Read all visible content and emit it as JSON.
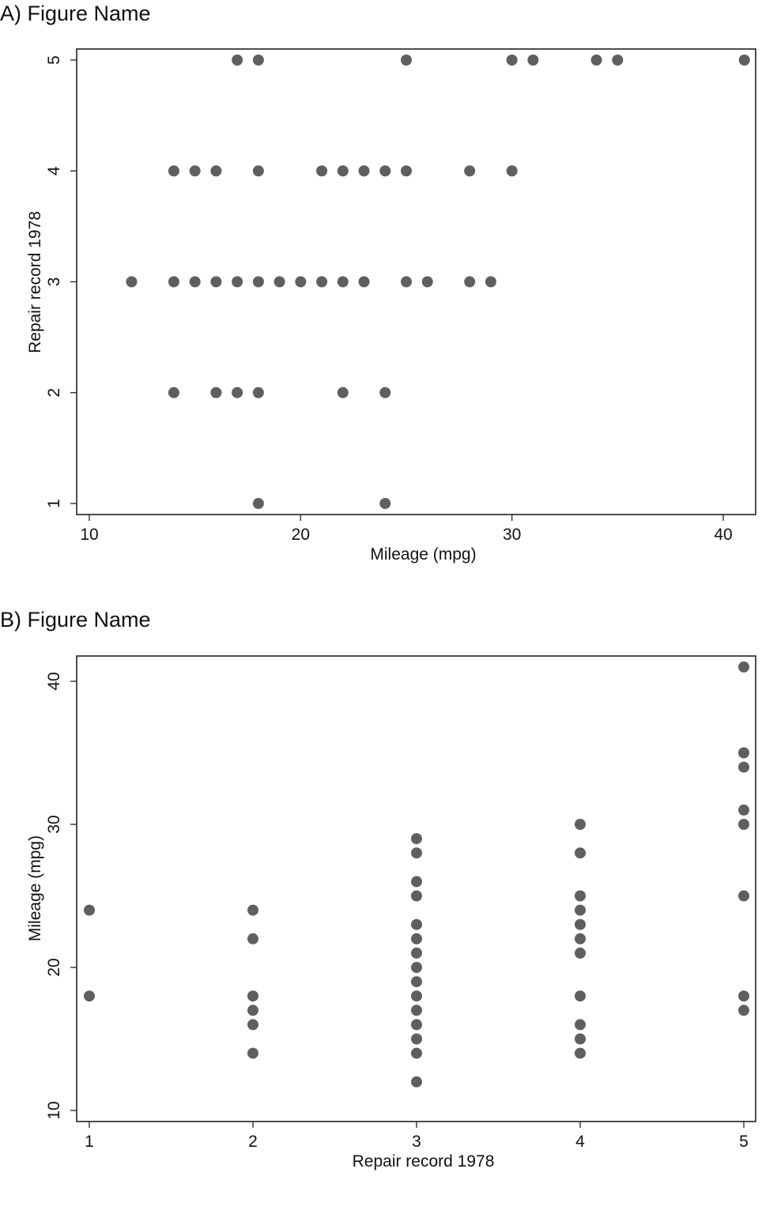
{
  "chart_data": [
    {
      "type": "scatter",
      "title": "A) Figure Name",
      "xlabel": "Mileage (mpg)",
      "ylabel": "Repair record 1978",
      "xlim": [
        9.4,
        41.6
      ],
      "ylim": [
        0.9,
        5.1
      ],
      "xticks": [
        10,
        20,
        30,
        40
      ],
      "yticks": [
        1,
        2,
        3,
        4,
        5
      ],
      "grid": false,
      "legend": null,
      "marker_color": "#5f5f5f",
      "points": [
        {
          "x": 17,
          "y": 5
        },
        {
          "x": 18,
          "y": 5
        },
        {
          "x": 25,
          "y": 5
        },
        {
          "x": 30,
          "y": 5
        },
        {
          "x": 31,
          "y": 5
        },
        {
          "x": 34,
          "y": 5
        },
        {
          "x": 35,
          "y": 5
        },
        {
          "x": 41,
          "y": 5
        },
        {
          "x": 14,
          "y": 4
        },
        {
          "x": 15,
          "y": 4
        },
        {
          "x": 16,
          "y": 4
        },
        {
          "x": 18,
          "y": 4
        },
        {
          "x": 21,
          "y": 4
        },
        {
          "x": 22,
          "y": 4
        },
        {
          "x": 23,
          "y": 4
        },
        {
          "x": 24,
          "y": 4
        },
        {
          "x": 25,
          "y": 4
        },
        {
          "x": 28,
          "y": 4
        },
        {
          "x": 30,
          "y": 4
        },
        {
          "x": 12,
          "y": 3
        },
        {
          "x": 14,
          "y": 3
        },
        {
          "x": 15,
          "y": 3
        },
        {
          "x": 16,
          "y": 3
        },
        {
          "x": 17,
          "y": 3
        },
        {
          "x": 18,
          "y": 3
        },
        {
          "x": 19,
          "y": 3
        },
        {
          "x": 20,
          "y": 3
        },
        {
          "x": 21,
          "y": 3
        },
        {
          "x": 22,
          "y": 3
        },
        {
          "x": 23,
          "y": 3
        },
        {
          "x": 25,
          "y": 3
        },
        {
          "x": 26,
          "y": 3
        },
        {
          "x": 28,
          "y": 3
        },
        {
          "x": 29,
          "y": 3
        },
        {
          "x": 14,
          "y": 2
        },
        {
          "x": 16,
          "y": 2
        },
        {
          "x": 17,
          "y": 2
        },
        {
          "x": 18,
          "y": 2
        },
        {
          "x": 22,
          "y": 2
        },
        {
          "x": 24,
          "y": 2
        },
        {
          "x": 18,
          "y": 1
        },
        {
          "x": 24,
          "y": 1
        }
      ]
    },
    {
      "type": "scatter",
      "title": "B) Figure Name",
      "xlabel": "Repair record 1978",
      "ylabel": "Mileage (mpg)",
      "xlim": [
        0.92,
        5.08
      ],
      "ylim": [
        9.2,
        41.6
      ],
      "xticks": [
        1,
        2,
        3,
        4,
        5
      ],
      "yticks": [
        10,
        20,
        30,
        40
      ],
      "grid": false,
      "legend": null,
      "marker_color": "#5f5f5f",
      "points": [
        {
          "x": 1,
          "y": 18
        },
        {
          "x": 1,
          "y": 24
        },
        {
          "x": 2,
          "y": 14
        },
        {
          "x": 2,
          "y": 16
        },
        {
          "x": 2,
          "y": 17
        },
        {
          "x": 2,
          "y": 18
        },
        {
          "x": 2,
          "y": 22
        },
        {
          "x": 2,
          "y": 24
        },
        {
          "x": 3,
          "y": 12
        },
        {
          "x": 3,
          "y": 14
        },
        {
          "x": 3,
          "y": 15
        },
        {
          "x": 3,
          "y": 16
        },
        {
          "x": 3,
          "y": 17
        },
        {
          "x": 3,
          "y": 18
        },
        {
          "x": 3,
          "y": 19
        },
        {
          "x": 3,
          "y": 20
        },
        {
          "x": 3,
          "y": 21
        },
        {
          "x": 3,
          "y": 22
        },
        {
          "x": 3,
          "y": 23
        },
        {
          "x": 3,
          "y": 25
        },
        {
          "x": 3,
          "y": 26
        },
        {
          "x": 3,
          "y": 28
        },
        {
          "x": 3,
          "y": 29
        },
        {
          "x": 4,
          "y": 14
        },
        {
          "x": 4,
          "y": 15
        },
        {
          "x": 4,
          "y": 16
        },
        {
          "x": 4,
          "y": 18
        },
        {
          "x": 4,
          "y": 21
        },
        {
          "x": 4,
          "y": 22
        },
        {
          "x": 4,
          "y": 23
        },
        {
          "x": 4,
          "y": 24
        },
        {
          "x": 4,
          "y": 25
        },
        {
          "x": 4,
          "y": 28
        },
        {
          "x": 4,
          "y": 30
        },
        {
          "x": 5,
          "y": 17
        },
        {
          "x": 5,
          "y": 18
        },
        {
          "x": 5,
          "y": 25
        },
        {
          "x": 5,
          "y": 30
        },
        {
          "x": 5,
          "y": 31
        },
        {
          "x": 5,
          "y": 34
        },
        {
          "x": 5,
          "y": 35
        },
        {
          "x": 5,
          "y": 41
        }
      ]
    }
  ]
}
